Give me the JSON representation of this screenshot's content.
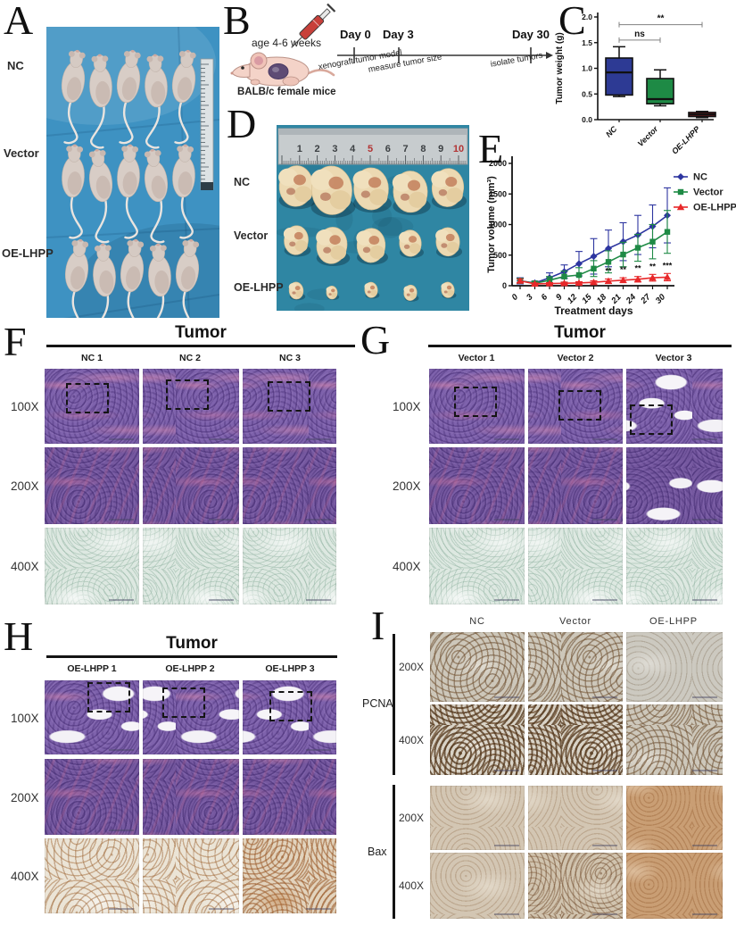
{
  "panel_a": {
    "letter": "A",
    "groups": [
      "NC",
      "Vector",
      "OE-LHPP"
    ]
  },
  "panel_b": {
    "letter": "B",
    "age_label": "age 4-6 weeks",
    "mice_label": "BALB/c female mice",
    "timeline": [
      {
        "day": "Day 0",
        "event": "xenograft tumor model"
      },
      {
        "day": "Day 3",
        "event": "measure tumor size"
      },
      {
        "day": "Day 30",
        "event": "isolate tumors"
      }
    ]
  },
  "panel_c": {
    "letter": "C"
  },
  "panel_d": {
    "letter": "D",
    "groups": [
      "NC",
      "Vector",
      "OE-LHPP"
    ],
    "ruler_numbers": [
      1,
      2,
      3,
      4,
      5,
      6,
      7,
      8,
      9,
      10
    ],
    "ruler_red": [
      5,
      10
    ]
  },
  "panel_e": {
    "letter": "E"
  },
  "panel_f": {
    "letter": "F",
    "title": "Tumor",
    "columns": [
      "NC 1",
      "NC 2",
      "NC 3"
    ],
    "rows": [
      "100X",
      "200X",
      "400X"
    ]
  },
  "panel_g": {
    "letter": "G",
    "title": "Tumor",
    "columns": [
      "Vector 1",
      "Vector 2",
      "Vector 3"
    ],
    "rows": [
      "100X",
      "200X",
      "400X"
    ]
  },
  "panel_h": {
    "letter": "H",
    "title": "Tumor",
    "columns": [
      "OE-LHPP 1",
      "OE-LHPP 2",
      "OE-LHPP 3"
    ],
    "rows": [
      "100X",
      "200X",
      "400X"
    ]
  },
  "panel_i": {
    "letter": "I",
    "columns": [
      "NC",
      "Vector",
      "OE-LHPP"
    ],
    "groups": [
      {
        "label": "PCNA",
        "rows": [
          "200X",
          "400X"
        ]
      },
      {
        "label": "Bax",
        "rows": [
          "200X",
          "400X"
        ]
      }
    ]
  },
  "chart_data": [
    {
      "id": "tumor-weight-box",
      "type": "box",
      "ylabel": "Tumor weight (g)",
      "ylim": [
        0,
        2.0
      ],
      "yticks": [
        "0.0",
        "0.5",
        "1.0",
        "1.5",
        "2.0"
      ],
      "categories": [
        "NC",
        "Vector",
        "OE-LHPP"
      ],
      "boxes": [
        {
          "name": "NC",
          "min": 0.45,
          "q1": 0.48,
          "median": 0.92,
          "q3": 1.2,
          "max": 1.42,
          "color": "#2d3a94"
        },
        {
          "name": "Vector",
          "min": 0.27,
          "q1": 0.31,
          "median": 0.4,
          "q3": 0.8,
          "max": 0.97,
          "color": "#1e8a45"
        },
        {
          "name": "OE-LHPP",
          "min": 0.04,
          "q1": 0.06,
          "median": 0.1,
          "q3": 0.14,
          "max": 0.16,
          "color": "#9b1b20"
        }
      ],
      "annotations": [
        {
          "label": "ns",
          "from": 0,
          "to": 1,
          "y": 1.55
        },
        {
          "label": "**",
          "from": 0,
          "to": 2,
          "y": 1.85
        }
      ]
    },
    {
      "id": "tumor-volume-line",
      "type": "line",
      "xlabel": "Treatment days",
      "ylabel": "Tumor volume (mm³)",
      "ylim": [
        0,
        2000
      ],
      "yticks": [
        "0",
        "500",
        "1000",
        "1500",
        "2000"
      ],
      "x": [
        0,
        3,
        6,
        9,
        12,
        15,
        18,
        21,
        24,
        27,
        30
      ],
      "legend_position": "right",
      "series": [
        {
          "name": "NC",
          "color": "#2d35a0",
          "marker": "diamond",
          "values": [
            80,
            45,
            130,
            230,
            360,
            480,
            610,
            720,
            830,
            970,
            1150
          ],
          "errors": [
            50,
            30,
            80,
            110,
            200,
            290,
            300,
            310,
            320,
            350,
            450
          ]
        },
        {
          "name": "Vector",
          "color": "#1e8a45",
          "marker": "square",
          "values": [
            80,
            40,
            90,
            150,
            175,
            280,
            390,
            510,
            620,
            720,
            880
          ],
          "errors": [
            40,
            25,
            60,
            90,
            120,
            130,
            180,
            200,
            220,
            280,
            350
          ]
        },
        {
          "name": "OE-LHPP",
          "color": "#e8282a",
          "marker": "triangle",
          "values": [
            80,
            30,
            35,
            40,
            45,
            55,
            75,
            90,
            105,
            130,
            140
          ],
          "errors": [
            30,
            15,
            15,
            18,
            20,
            25,
            35,
            40,
            45,
            55,
            60
          ]
        }
      ],
      "significance": [
        {
          "x": 18,
          "label": "**"
        },
        {
          "x": 21,
          "label": "**"
        },
        {
          "x": 24,
          "label": "**"
        },
        {
          "x": 27,
          "label": "**"
        },
        {
          "x": 30,
          "label": "***"
        }
      ]
    }
  ]
}
